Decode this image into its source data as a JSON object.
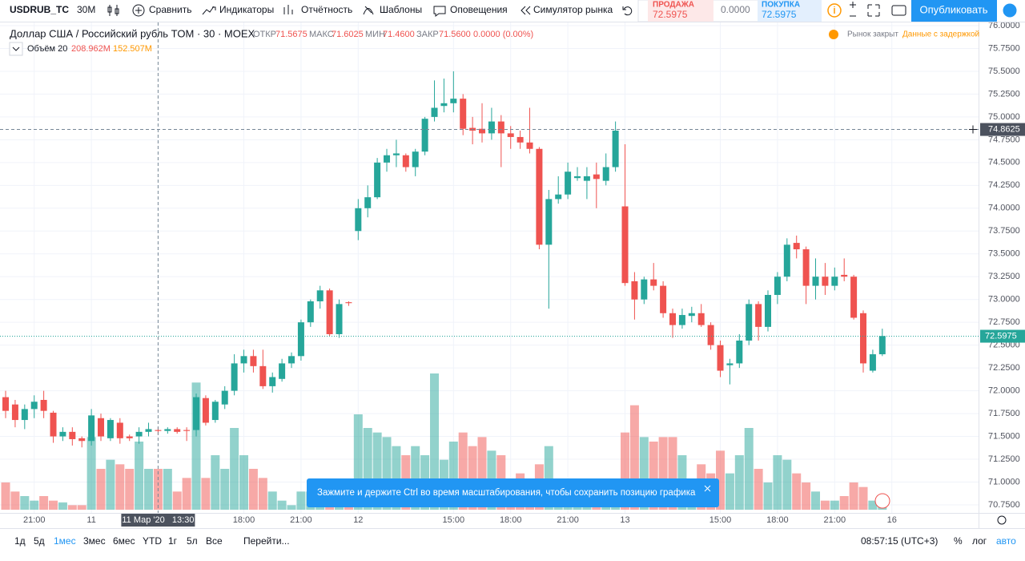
{
  "toolbar": {
    "symbol": "USDRUB_TC",
    "interval": "30М",
    "items": [
      "Сравнить",
      "Индикаторы",
      "Отчётность",
      "Шаблоны",
      "Оповещения",
      "Симулятор рынка"
    ],
    "sell_label": "ПРОДАЖА",
    "sell_price": "72.5975",
    "spread": "0.0000",
    "buy_label": "ПОКУПКА",
    "buy_price": "72.5975",
    "publish": "Опубликовать"
  },
  "legend": {
    "title": "Доллар США / Российский рубль TOM · 30 · MOEX",
    "open_label": "ОТКР",
    "open": "71.5675",
    "high_label": "МАКС",
    "high": "71.6025",
    "low_label": "МИН",
    "low": "71.4600",
    "close_label": "ЗАКР",
    "close": "71.5600",
    "change": "0.0000 (0.00%)",
    "volume_label": "Объём 20",
    "volume": "208.962M",
    "volume_ma": "152.507M",
    "market_status": "Рынок закрыт",
    "delay": "Данные с задержкой"
  },
  "chart_data": {
    "type": "candlestick",
    "up_color": "#26a69a",
    "down_color": "#ef5350",
    "open": [
      71.93,
      71.85,
      71.68,
      71.8,
      71.9,
      71.76,
      71.5,
      71.55,
      71.48,
      71.45,
      71.7,
      71.48,
      71.65,
      71.5,
      71.5,
      71.55,
      71.57,
      71.56,
      71.58,
      71.57,
      71.57,
      71.92,
      71.68,
      71.85,
      72.0,
      72.3,
      72.38,
      72.27,
      72.05,
      72.13,
      72.3,
      72.38,
      72.75,
      72.98,
      73.1,
      72.62,
      72.97,
      73.75,
      74.0,
      74.12,
      74.5,
      74.58,
      74.58,
      74.45,
      74.62,
      75.0,
      75.12,
      75.15,
      75.2,
      74.88,
      74.87,
      74.82,
      74.95,
      74.82,
      74.78,
      74.72,
      74.65,
      73.6,
      74.1,
      74.15,
      74.33,
      74.3,
      74.37,
      74.3,
      74.45,
      74.02,
      73.2,
      73.0,
      73.22,
      73.15,
      72.85,
      72.72,
      72.82,
      72.85,
      72.72,
      72.5,
      72.28,
      72.3,
      72.55,
      72.95,
      72.7,
      73.05,
      73.25,
      73.62,
      73.55,
      73.15,
      73.25,
      73.15,
      73.27,
      73.25,
      72.85,
      72.22,
      72.4
    ],
    "high": [
      72.0,
      71.9,
      71.85,
      71.95,
      72.0,
      71.78,
      71.6,
      71.6,
      71.5,
      71.8,
      71.75,
      71.7,
      71.7,
      71.52,
      71.6,
      71.65,
      71.6,
      71.6,
      71.6,
      71.6,
      71.97,
      71.95,
      71.9,
      72.05,
      72.4,
      72.45,
      72.45,
      72.45,
      72.2,
      72.35,
      72.42,
      72.78,
      73.0,
      73.15,
      73.12,
      73.0,
      72.98,
      74.1,
      74.25,
      74.55,
      74.65,
      74.75,
      74.6,
      74.65,
      75.0,
      75.4,
      75.42,
      75.5,
      75.25,
      75.0,
      75.15,
      75.1,
      75.02,
      74.9,
      74.85,
      75.1,
      74.67,
      74.2,
      74.35,
      74.5,
      74.45,
      74.45,
      74.5,
      74.6,
      74.95,
      74.7,
      73.3,
      73.25,
      73.4,
      73.2,
      72.9,
      72.9,
      72.92,
      72.95,
      72.75,
      72.55,
      72.35,
      72.62,
      73.0,
      72.98,
      73.1,
      73.3,
      73.67,
      73.7,
      73.58,
      73.45,
      73.4,
      73.35,
      73.45,
      73.27,
      72.88,
      72.45,
      72.68
    ],
    "low": [
      71.7,
      71.6,
      71.58,
      71.7,
      71.7,
      71.43,
      71.45,
      71.4,
      71.38,
      71.4,
      71.45,
      71.45,
      71.42,
      71.45,
      71.42,
      71.5,
      71.52,
      71.53,
      71.53,
      71.45,
      71.5,
      71.62,
      71.65,
      71.8,
      71.95,
      72.2,
      72.2,
      72.02,
      71.98,
      72.1,
      72.25,
      72.33,
      72.7,
      72.9,
      72.6,
      72.58,
      72.93,
      73.65,
      73.9,
      74.1,
      74.4,
      74.45,
      74.4,
      74.35,
      74.58,
      74.95,
      75.05,
      75.05,
      74.8,
      74.7,
      74.72,
      74.75,
      74.45,
      74.65,
      74.65,
      74.6,
      73.55,
      72.9,
      74.05,
      74.1,
      74.3,
      74.1,
      74.0,
      74.25,
      74.4,
      73.15,
      72.78,
      72.95,
      73.1,
      72.8,
      72.58,
      72.68,
      72.75,
      72.7,
      72.45,
      72.15,
      72.07,
      72.25,
      72.5,
      72.55,
      72.65,
      72.95,
      73.2,
      73.45,
      72.95,
      73.0,
      73.05,
      73.1,
      73.2,
      72.78,
      72.2,
      72.2,
      72.38
    ],
    "close": [
      71.78,
      71.68,
      71.8,
      71.88,
      71.78,
      71.5,
      71.55,
      71.47,
      71.45,
      71.73,
      71.5,
      71.68,
      71.48,
      71.48,
      71.55,
      71.58,
      71.56,
      71.58,
      71.55,
      71.56,
      71.93,
      71.65,
      71.88,
      72.0,
      72.3,
      72.38,
      72.27,
      72.05,
      72.15,
      72.3,
      72.38,
      72.75,
      72.98,
      73.1,
      72.62,
      72.95,
      72.96,
      74.0,
      74.12,
      74.5,
      74.58,
      74.6,
      74.45,
      74.62,
      74.98,
      75.1,
      75.15,
      75.2,
      74.87,
      74.85,
      74.82,
      74.95,
      74.82,
      74.78,
      74.72,
      74.65,
      73.6,
      74.1,
      74.15,
      74.4,
      74.35,
      74.35,
      74.32,
      74.45,
      74.85,
      73.18,
      73.0,
      73.22,
      73.15,
      72.85,
      72.72,
      72.83,
      72.85,
      72.72,
      72.5,
      72.22,
      72.3,
      72.55,
      72.95,
      72.7,
      73.05,
      73.25,
      73.6,
      73.55,
      73.15,
      73.25,
      73.15,
      73.25,
      73.25,
      72.8,
      72.3,
      72.4,
      72.6
    ],
    "volume": [
      216,
      144,
      108,
      72,
      108,
      72,
      58,
      36,
      36,
      576,
      324,
      396,
      360,
      324,
      540,
      324,
      324,
      324,
      144,
      252,
      1008,
      252,
      432,
      324,
      648,
      432,
      324,
      252,
      144,
      72,
      36,
      144,
      144,
      144,
      144,
      144,
      144,
      756,
      648,
      612,
      576,
      504,
      432,
      504,
      432,
      1080,
      396,
      540,
      612,
      504,
      576,
      468,
      432,
      180,
      288,
      216,
      360,
      504,
      144,
      108,
      72,
      72,
      36,
      72,
      108,
      612,
      828,
      576,
      540,
      576,
      576,
      432,
      180,
      360,
      288,
      468,
      288,
      432,
      648,
      324,
      216,
      432,
      396,
      288,
      216,
      144,
      72,
      72,
      108,
      216,
      180,
      72,
      72
    ],
    "xlim": [
      -0.59,
      102.1
    ],
    "ylim": [
      70.662,
      76.035
    ],
    "yticks": [
      {
        "value": 76,
        "label": "76.0000"
      },
      {
        "value": 75.75,
        "label": "75.7500"
      },
      {
        "value": 75.5,
        "label": "75.5000"
      },
      {
        "value": 75.25,
        "label": "75.2500"
      },
      {
        "value": 75,
        "label": "75.0000"
      },
      {
        "value": 74.75,
        "label": "74.7500"
      },
      {
        "value": 74.5,
        "label": "74.5000"
      },
      {
        "value": 74.25,
        "label": "74.2500"
      },
      {
        "value": 74,
        "label": "74.0000"
      },
      {
        "value": 73.75,
        "label": "73.7500"
      },
      {
        "value": 73.5,
        "label": "73.5000"
      },
      {
        "value": 73.25,
        "label": "73.2500"
      },
      {
        "value": 73,
        "label": "73.0000"
      },
      {
        "value": 72.75,
        "label": "72.7500"
      },
      {
        "value": 72.5,
        "label": "72.5000"
      },
      {
        "value": 72.25,
        "label": "72.2500"
      },
      {
        "value": 72,
        "label": "72.0000"
      },
      {
        "value": 71.75,
        "label": "71.7500"
      },
      {
        "value": 71.5,
        "label": "71.5000"
      },
      {
        "value": 71.25,
        "label": "71.2500"
      },
      {
        "value": 71,
        "label": "71.0000"
      },
      {
        "value": 70.75,
        "label": "70.7500"
      }
    ],
    "xticks": [
      {
        "value": 3,
        "label": "21:00"
      },
      {
        "value": 9,
        "label": "11"
      },
      {
        "value": 25,
        "label": "18:00"
      },
      {
        "value": 31,
        "label": "21:00"
      },
      {
        "value": 37,
        "label": "12"
      },
      {
        "value": 47,
        "label": "15:00"
      },
      {
        "value": 53,
        "label": "18:00"
      },
      {
        "value": 59,
        "label": "21:00"
      },
      {
        "value": 65,
        "label": "13"
      },
      {
        "value": 75,
        "label": "15:00"
      },
      {
        "value": 81,
        "label": "18:00"
      },
      {
        "value": 87,
        "label": "21:00"
      },
      {
        "value": 93,
        "label": "16"
      }
    ],
    "crosshair_x": {
      "value": 16,
      "label": "11 Мар '20   13:30"
    },
    "crosshair_price": 74.8625,
    "last_price": 72.5975,
    "grid": true
  },
  "toast": "Зажмите и держите Ctrl во время масштабирования, чтобы сохранить позицию графика",
  "bottom": {
    "ranges": [
      "1д",
      "5д",
      "1мес",
      "3мес",
      "6мес",
      "YTD",
      "1г",
      "5л",
      "Все"
    ],
    "goto": "Перейти...",
    "clock": "08:57:15 (UTC+3)",
    "percent": "%",
    "log": "лог",
    "auto": "авто"
  }
}
